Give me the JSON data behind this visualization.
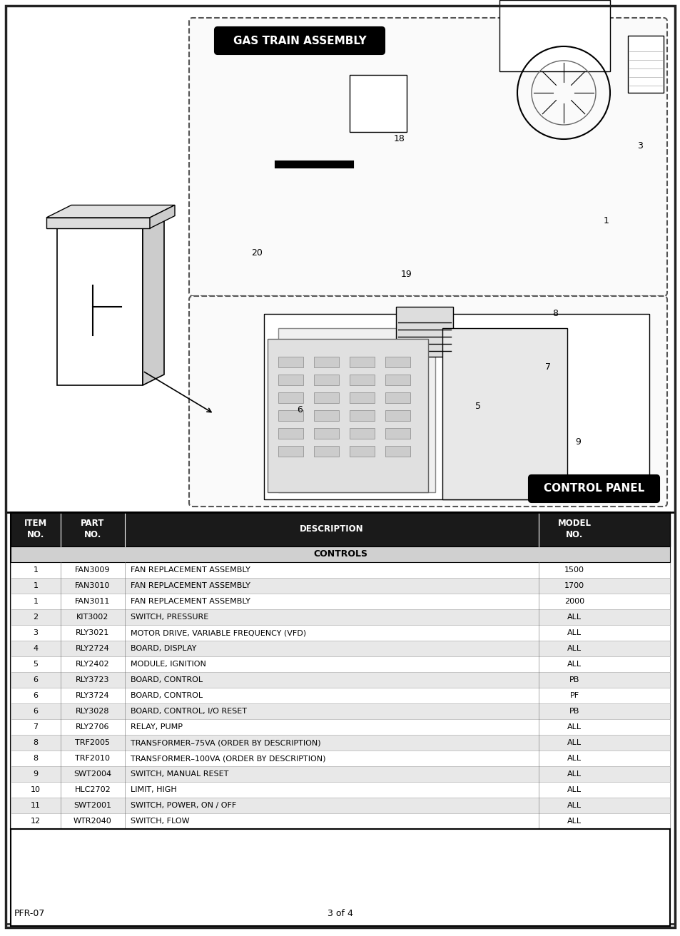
{
  "title_gas": "GAS TRAIN ASSEMBLY",
  "title_control": "CONTROL PANEL",
  "footer_left": "PFR-07",
  "footer_center": "3 of 4",
  "table_header": [
    "ITEM\nNO.",
    "PART\nNO.",
    "DESCRIPTION",
    "MODEL\nNO."
  ],
  "section_label": "CONTROLS",
  "rows": [
    [
      "1",
      "FAN3009",
      "FAN REPLACEMENT ASSEMBLY",
      "1500"
    ],
    [
      "1",
      "FAN3010",
      "FAN REPLACEMENT ASSEMBLY",
      "1700"
    ],
    [
      "1",
      "FAN3011",
      "FAN REPLACEMENT ASSEMBLY",
      "2000"
    ],
    [
      "2",
      "KIT3002",
      "SWITCH, PRESSURE",
      "ALL"
    ],
    [
      "3",
      "RLY3021",
      "MOTOR DRIVE, VARIABLE FREQUENCY (VFD)",
      "ALL"
    ],
    [
      "4",
      "RLY2724",
      "BOARD, DISPLAY",
      "ALL"
    ],
    [
      "5",
      "RLY2402",
      "MODULE, IGNITION",
      "ALL"
    ],
    [
      "6",
      "RLY3723",
      "BOARD, CONTROL",
      "PB"
    ],
    [
      "6",
      "RLY3724",
      "BOARD, CONTROL",
      "PF"
    ],
    [
      "6",
      "RLY3028",
      "BOARD, CONTROL, I/O RESET",
      "PB"
    ],
    [
      "7",
      "RLY2706",
      "RELAY, PUMP",
      "ALL"
    ],
    [
      "8",
      "TRF2005",
      "TRANSFORMER–75VA (ORDER BY DESCRIPTION)",
      "ALL"
    ],
    [
      "8",
      "TRF2010",
      "TRANSFORMER–100VA (ORDER BY DESCRIPTION)",
      "ALL"
    ],
    [
      "9",
      "SWT2004",
      "SWITCH, MANUAL RESET",
      "ALL"
    ],
    [
      "10",
      "HLC2702",
      "LIMIT, HIGH",
      "ALL"
    ],
    [
      "11",
      "SWT2001",
      "SWITCH, POWER, ON / OFF",
      "ALL"
    ],
    [
      "12",
      "WTR2040",
      "SWITCH, FLOW",
      "ALL"
    ]
  ],
  "bg_color": "#ffffff",
  "header_bg": "#1a1a1a",
  "header_fg": "#ffffff",
  "section_bg": "#d0d0d0",
  "row_alt1": "#ffffff",
  "row_alt2": "#e8e8e8",
  "border_color": "#000000",
  "diagram_bg": "#f5f5f5",
  "outer_border": "#333333"
}
